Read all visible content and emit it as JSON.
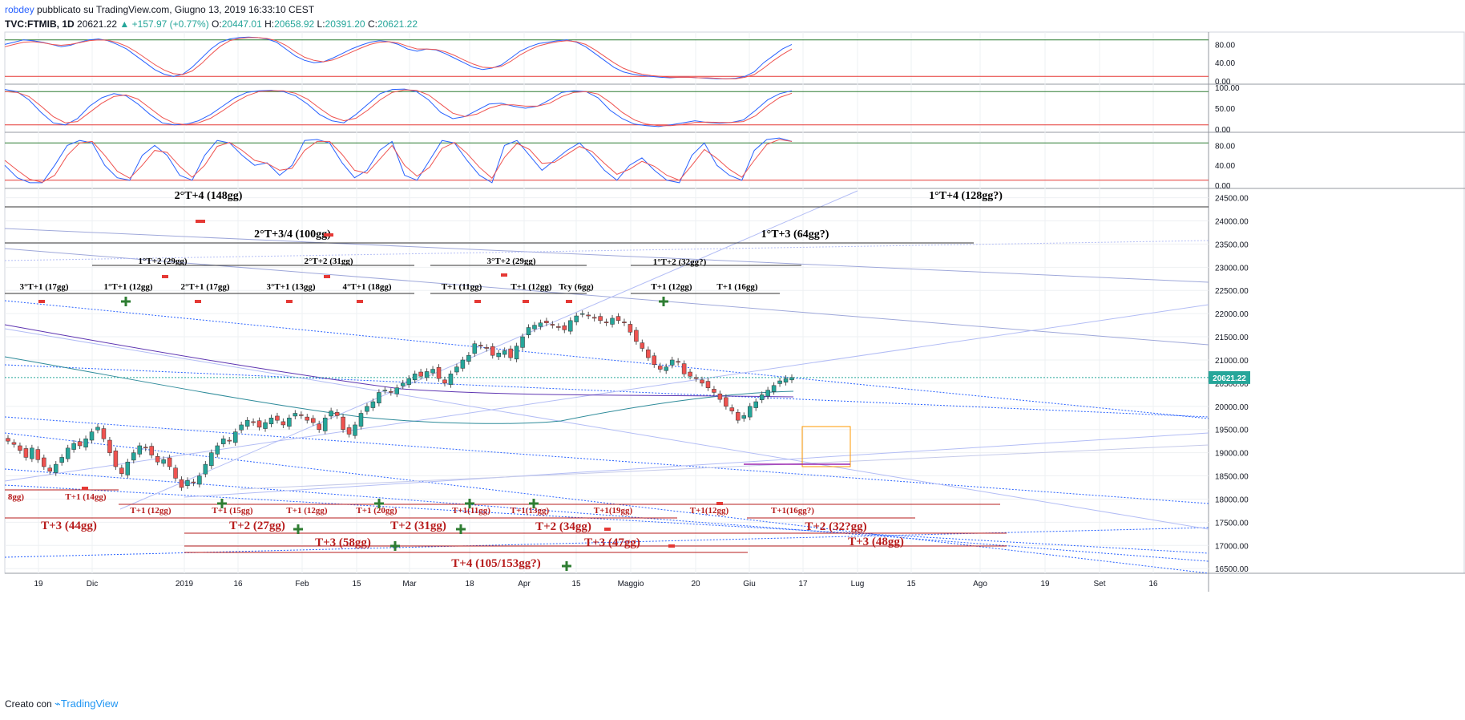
{
  "header": {
    "line1_author": "robdey",
    "line1_rest": " pubblicato su TradingView.com, Giugno 13, 2019 16:33:10 CEST",
    "symbol": "TVC:FTMIB, 1D",
    "last": "20621.22",
    "change": "▲ +157.97 (+0.77%)",
    "o_label": "O:",
    "o_val": "20447.01",
    "h_label": "H:",
    "h_val": "20658.92",
    "l_label": "L:",
    "l_val": "20391.20",
    "c_label": "C:",
    "c_val": "20621.22"
  },
  "footer": {
    "prefix": "Creato con",
    "brand": "TradingView"
  },
  "colors": {
    "up": "#26a69a",
    "down": "#ef5350",
    "blue_line": "#2962ff",
    "red_line": "#ef5350",
    "annot_dark": "#000000",
    "annot_red": "#b71c1c",
    "plus": "#2e7d32",
    "last_tag": "#26a69a"
  },
  "chart_data": [
    {
      "type": "candlestick",
      "title": "",
      "x_ticks": [
        "19",
        "Dic",
        "2019",
        "16",
        "Feb",
        "15",
        "Mar",
        "18",
        "Apr",
        "15",
        "Maggio",
        "20",
        "Giu",
        "17",
        "Lug",
        "15",
        "Ago",
        "19",
        "Set",
        "16"
      ],
      "y_ticks": [
        "24500.00",
        "24000.00",
        "23500.00",
        "23000.00",
        "22500.00",
        "22000.00",
        "21500.00",
        "21000.00",
        "20500.00",
        "20000.00",
        "19500.00",
        "19000.00",
        "18500.00",
        "18000.00",
        "17500.00",
        "17000.00",
        "16500.00"
      ],
      "ylim": [
        16400,
        24700
      ],
      "last_price_label": "20621.22",
      "close_series": [
        19250,
        19180,
        19050,
        18900,
        19100,
        18850,
        18700,
        18600,
        18750,
        18900,
        19100,
        19200,
        19150,
        19300,
        19450,
        19550,
        19300,
        19000,
        18700,
        18550,
        18800,
        19000,
        19150,
        19100,
        18950,
        18800,
        18850,
        18700,
        18450,
        18250,
        18400,
        18350,
        18500,
        18750,
        19000,
        19150,
        19300,
        19250,
        19450,
        19600,
        19700,
        19650,
        19550,
        19650,
        19750,
        19700,
        19600,
        19750,
        19850,
        19800,
        19700,
        19650,
        19500,
        19750,
        19900,
        19800,
        19500,
        19400,
        19600,
        19850,
        20000,
        20100,
        20300,
        20350,
        20300,
        20400,
        20500,
        20600,
        20700,
        20650,
        20750,
        20800,
        20600,
        20500,
        20700,
        20850,
        21000,
        21100,
        21350,
        21300,
        21250,
        21100,
        21150,
        21200,
        21050,
        21300,
        21500,
        21700,
        21750,
        21800,
        21800,
        21750,
        21700,
        21650,
        21850,
        21950,
        22000,
        21950,
        21900,
        21850,
        21800,
        21900,
        21850,
        21800,
        21600,
        21400,
        21250,
        21050,
        20900,
        20800,
        20850,
        21000,
        20950,
        20700,
        20650,
        20600,
        20500,
        20400,
        20300,
        20150,
        20000,
        19900,
        19700,
        19800,
        20000,
        20100,
        20250,
        20350,
        20450,
        20550,
        20600,
        20621
      ]
    },
    {
      "type": "line",
      "title": "",
      "ylim": [
        0,
        100
      ],
      "y_ticks": [
        "80.00",
        "40.00",
        "0.00"
      ],
      "levels": [
        90,
        10
      ],
      "series": [
        {
          "color": "#2962ff",
          "values": [
            80,
            85,
            90,
            88,
            85,
            80,
            75,
            78,
            85,
            90,
            92,
            88,
            80,
            70,
            55,
            40,
            25,
            15,
            10,
            15,
            30,
            50,
            70,
            85,
            92,
            95,
            96,
            95,
            92,
            85,
            70,
            55,
            45,
            40,
            42,
            50,
            60,
            70,
            78,
            85,
            88,
            86,
            80,
            70,
            65,
            70,
            68,
            60,
            50,
            40,
            30,
            25,
            28,
            35,
            50,
            65,
            75,
            82,
            85,
            88,
            90,
            85,
            75,
            60,
            45,
            30,
            20,
            15,
            12,
            10,
            8,
            7,
            8,
            8,
            7,
            6,
            5,
            5,
            6,
            10,
            20,
            40,
            55,
            70,
            80
          ]
        },
        {
          "color": "#ef5350",
          "values": [
            75,
            80,
            85,
            86,
            84,
            80,
            78,
            80,
            84,
            88,
            90,
            89,
            84,
            76,
            64,
            50,
            36,
            24,
            16,
            14,
            22,
            38,
            58,
            76,
            88,
            93,
            95,
            95,
            93,
            88,
            78,
            64,
            52,
            45,
            42,
            46,
            54,
            63,
            72,
            80,
            85,
            86,
            83,
            76,
            70,
            70,
            69,
            64,
            56,
            46,
            37,
            30,
            29,
            32,
            43,
            57,
            68,
            77,
            82,
            86,
            88,
            86,
            80,
            68,
            54,
            40,
            28,
            20,
            15,
            12,
            10,
            8,
            8,
            8,
            7,
            7,
            6,
            5,
            5,
            8,
            14,
            28,
            44,
            58,
            70
          ]
        }
      ]
    },
    {
      "type": "line",
      "title": "",
      "ylim": [
        0,
        100
      ],
      "y_ticks": [
        "100.00",
        "50.00",
        "0.00"
      ],
      "levels": [
        90,
        10
      ],
      "series": [
        {
          "color": "#2962ff",
          "values": [
            95,
            90,
            70,
            40,
            15,
            10,
            25,
            55,
            75,
            85,
            80,
            60,
            35,
            15,
            10,
            12,
            20,
            35,
            55,
            75,
            88,
            92,
            93,
            90,
            80,
            60,
            35,
            20,
            15,
            35,
            60,
            85,
            95,
            96,
            90,
            70,
            40,
            25,
            30,
            45,
            60,
            62,
            55,
            50,
            55,
            70,
            88,
            92,
            90,
            75,
            45,
            25,
            12,
            8,
            6,
            10,
            15,
            20,
            16,
            14,
            16,
            22,
            45,
            70,
            85,
            92
          ]
        },
        {
          "color": "#ef5350",
          "values": [
            90,
            88,
            78,
            55,
            30,
            15,
            18,
            40,
            62,
            78,
            82,
            72,
            50,
            28,
            14,
            10,
            15,
            26,
            44,
            64,
            80,
            90,
            92,
            92,
            86,
            72,
            50,
            30,
            20,
            26,
            46,
            70,
            88,
            94,
            93,
            82,
            60,
            38,
            30,
            36,
            50,
            58,
            58,
            55,
            55,
            62,
            78,
            88,
            90,
            84,
            64,
            40,
            22,
            12,
            8,
            8,
            11,
            16,
            17,
            16,
            16,
            18,
            32,
            56,
            76,
            86
          ]
        }
      ]
    },
    {
      "type": "line",
      "title": "",
      "ylim": [
        0,
        100
      ],
      "y_ticks": [
        "80.00",
        "40.00",
        "0.00"
      ],
      "levels": [
        85,
        10
      ],
      "series": [
        {
          "color": "#2962ff",
          "values": [
            40,
            15,
            5,
            5,
            40,
            80,
            90,
            85,
            40,
            15,
            10,
            60,
            80,
            60,
            20,
            10,
            60,
            90,
            85,
            60,
            40,
            45,
            20,
            40,
            90,
            92,
            85,
            45,
            15,
            30,
            70,
            88,
            20,
            10,
            50,
            90,
            85,
            50,
            20,
            5,
            80,
            90,
            60,
            30,
            50,
            70,
            85,
            60,
            30,
            10,
            40,
            55,
            30,
            10,
            5,
            60,
            85,
            40,
            20,
            10,
            70,
            92,
            95,
            88
          ]
        },
        {
          "color": "#ef5350",
          "values": [
            50,
            30,
            12,
            6,
            20,
            60,
            85,
            88,
            60,
            28,
            14,
            40,
            70,
            66,
            38,
            16,
            40,
            78,
            86,
            70,
            50,
            44,
            30,
            34,
            70,
            88,
            88,
            62,
            30,
            24,
            52,
            80,
            40,
            18,
            36,
            74,
            86,
            64,
            36,
            14,
            56,
            84,
            72,
            44,
            46,
            62,
            78,
            68,
            44,
            22,
            32,
            48,
            38,
            20,
            10,
            40,
            72,
            54,
            32,
            16,
            50,
            82,
            92,
            88
          ]
        }
      ]
    }
  ],
  "annotations": {
    "dark": [
      "2°T+4 (148gg)",
      "1°T+4 (128gg?)",
      "2°T+3/4 (100gg)",
      "1°T+3 (64gg?)",
      "1°T+2 (29gg)",
      "2°T+2 (31gg)",
      "3°T+2 (29gg)",
      "1°T+2 (32gg?)",
      "3°T+1 (17gg)",
      "1°T+1 (12gg)",
      "2°T+1 (17gg)",
      "3°T+1 (13gg)",
      "4°T+1 (18gg)",
      "T+1 (11gg)",
      "T+1 (12gg)",
      "Tcy (6gg)",
      "T+1 (12gg)",
      "T+1 (16gg)"
    ],
    "red": [
      "8gg)",
      "T+1 (14gg)",
      "T+1 (12gg)",
      "T+1 (15gg)",
      "T+1 (12gg)",
      "T+1 (20gg)",
      "T+1(11gg)",
      "T+1(13gg)",
      "T+1(19gg)",
      "T+1(12gg)",
      "T+1(16gg?)",
      "T+3 (44gg)",
      "T+2 (27gg)",
      "T+2 (31gg)",
      "T+2 (34gg)",
      "T+2 (32?gg)",
      "T+3 (58gg)",
      "T+3 (47gg)",
      "T+3 (48gg)",
      "T+4 (105/153gg?)"
    ]
  }
}
